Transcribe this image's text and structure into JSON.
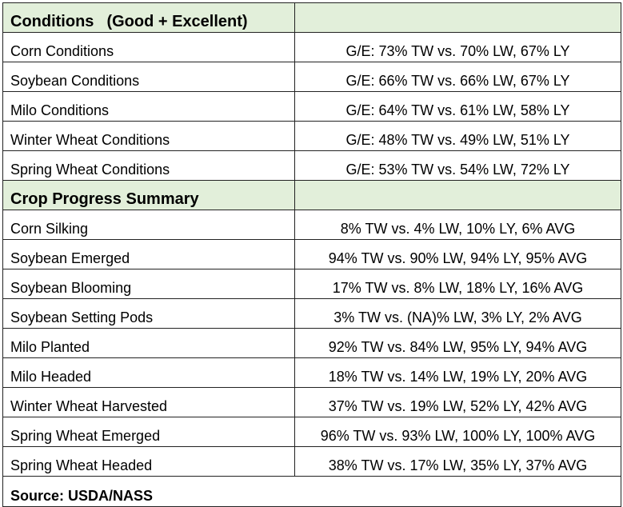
{
  "conditions": {
    "heading": "Conditions",
    "heading_note": "(Good + Excellent)",
    "rows": [
      {
        "label": "Corn Conditions",
        "value": "G/E: 73% TW vs. 70% LW, 67% LY"
      },
      {
        "label": "Soybean Conditions",
        "value": "G/E: 66% TW vs. 66% LW, 67% LY"
      },
      {
        "label": "Milo Conditions",
        "value": "G/E: 64% TW vs. 61% LW, 58% LY"
      },
      {
        "label": "Winter Wheat Conditions",
        "value": "G/E: 48% TW vs. 49% LW, 51% LY"
      },
      {
        "label": "Spring Wheat Conditions",
        "value": "G/E: 53% TW vs. 54% LW, 72% LY"
      }
    ]
  },
  "progress": {
    "heading": "Crop Progress Summary",
    "rows": [
      {
        "label": "Corn Silking",
        "value": "8% TW vs. 4% LW, 10% LY, 6% AVG"
      },
      {
        "label": "Soybean Emerged",
        "value": "94% TW vs. 90% LW, 94% LY, 95% AVG"
      },
      {
        "label": "Soybean Blooming",
        "value": "17% TW vs. 8% LW, 18% LY, 16% AVG"
      },
      {
        "label": "Soybean Setting Pods",
        "value": "3% TW vs. (NA)% LW, 3% LY, 2% AVG"
      },
      {
        "label": "Milo Planted",
        "value": "92% TW vs. 84% LW, 95% LY, 94% AVG"
      },
      {
        "label": "Milo Headed",
        "value": "18% TW vs. 14% LW, 19% LY, 20% AVG"
      },
      {
        "label": "Winter Wheat Harvested",
        "value": "37% TW vs. 19% LW, 52% LY, 42% AVG"
      },
      {
        "label": "Spring Wheat Emerged",
        "value": "96% TW vs. 93% LW, 100% LY, 100% AVG"
      },
      {
        "label": "Spring Wheat Headed",
        "value": "38% TW vs. 17% LW, 35% LY, 37% AVG"
      }
    ]
  },
  "source": "Source: USDA/NASS",
  "colors": {
    "header_bg": "#e2efda"
  }
}
